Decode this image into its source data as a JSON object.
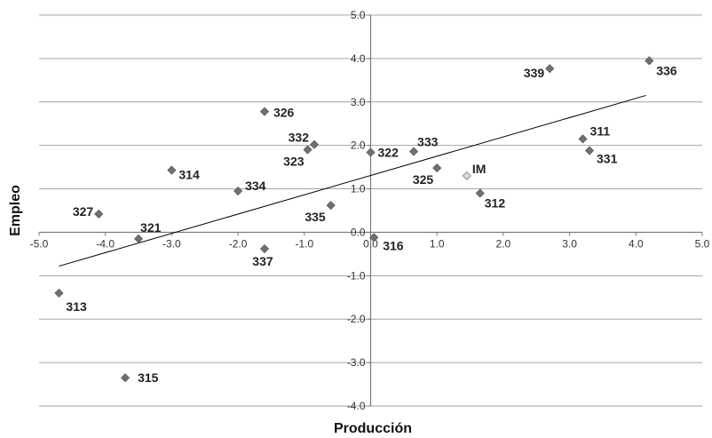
{
  "chart_data": {
    "type": "scatter",
    "xlabel": "Producción",
    "ylabel": "Empleo",
    "xlim": [
      -5.0,
      5.0
    ],
    "ylim": [
      -4.0,
      5.0
    ],
    "x_ticks": [
      "-5.0",
      "-4.0",
      "-3.0",
      "-2.0",
      "-1.0",
      "0.0",
      "1.0",
      "2.0",
      "3.0",
      "4.0",
      "5.0"
    ],
    "y_ticks": [
      "5.0",
      "4.0",
      "3.0",
      "2.0",
      "1.0",
      "0.0",
      "-1.0",
      "-2.0",
      "-3.0",
      "-4.0"
    ],
    "grid": "horizontal",
    "colors": {
      "points": "#707070",
      "highlight": "#d9d9d9",
      "trend": "#000000",
      "grid": "#a6a6a6"
    },
    "points": [
      {
        "label": "336",
        "x": 4.2,
        "y": 3.95
      },
      {
        "label": "339",
        "x": 2.7,
        "y": 3.77
      },
      {
        "label": "326",
        "x": -1.6,
        "y": 2.78
      },
      {
        "label": "311",
        "x": 3.2,
        "y": 2.15
      },
      {
        "label": "331",
        "x": 3.3,
        "y": 1.88
      },
      {
        "label": "332",
        "x": -0.85,
        "y": 2.02
      },
      {
        "label": "323",
        "x": -0.95,
        "y": 1.9
      },
      {
        "label": "322",
        "x": 0.0,
        "y": 1.84
      },
      {
        "label": "333",
        "x": 0.65,
        "y": 1.86
      },
      {
        "label": "325",
        "x": 1.0,
        "y": 1.48
      },
      {
        "label": "IM",
        "x": 1.45,
        "y": 1.3,
        "highlight": true
      },
      {
        "label": "314",
        "x": -3.0,
        "y": 1.43
      },
      {
        "label": "334",
        "x": -2.0,
        "y": 0.95
      },
      {
        "label": "312",
        "x": 1.65,
        "y": 0.9
      },
      {
        "label": "335",
        "x": -0.6,
        "y": 0.62
      },
      {
        "label": "327",
        "x": -4.1,
        "y": 0.42
      },
      {
        "label": "321",
        "x": -3.5,
        "y": -0.15
      },
      {
        "label": "316",
        "x": 0.05,
        "y": -0.12
      },
      {
        "label": "337",
        "x": -1.6,
        "y": -0.38
      },
      {
        "label": "313",
        "x": -4.7,
        "y": -1.4
      },
      {
        "label": "315",
        "x": -3.7,
        "y": -3.35
      }
    ],
    "trendline": {
      "from": [
        -4.7,
        -0.78
      ],
      "to": [
        4.15,
        3.15
      ]
    }
  }
}
